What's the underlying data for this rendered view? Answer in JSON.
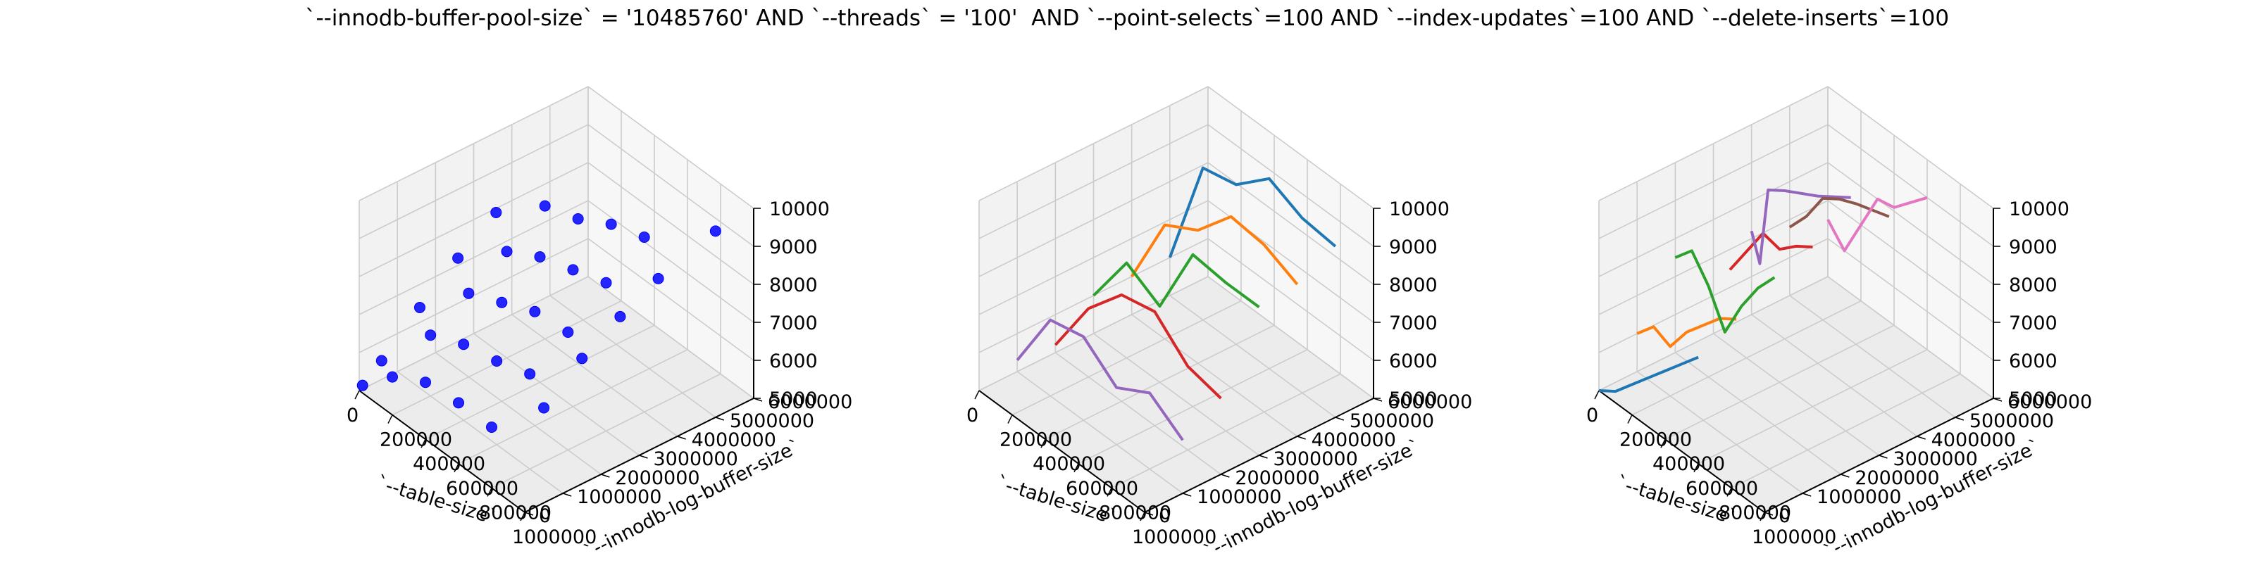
{
  "figure": {
    "title": "`--innodb-buffer-pool-size` = '10485760' AND `--threads` = '100'  AND `--point-selects`=100 AND `--index-updates`=100 AND `--delete-inserts`=100"
  },
  "colors": {
    "scatter": "#0000ff",
    "series": [
      "#1f77b4",
      "#ff7f0e",
      "#2ca02c",
      "#d62728",
      "#9467bd",
      "#8c564b",
      "#e377c2"
    ],
    "pane": "#f2f2f2",
    "grid": "#cccccc"
  },
  "chart_data": [
    {
      "type": "scatter",
      "xlabel": "`--table-size`",
      "ylabel": "`--innodb-log-buffer-size`",
      "zlabel": "",
      "xlim": [
        0,
        1000000
      ],
      "ylim": [
        0,
        6000000
      ],
      "zlim": [
        5000,
        10000
      ],
      "xticks": [
        "0",
        "200000",
        "400000",
        "600000",
        "800000",
        "1000000"
      ],
      "yticks": [
        "0",
        "1000000",
        "2000000",
        "3000000",
        "4000000",
        "5000000",
        "6000000"
      ],
      "zticks": [
        "5000",
        "6000",
        "7000",
        "8000",
        "9000",
        "10000"
      ],
      "grid": true,
      "points": [
        {
          "x": 20000,
          "y": 0,
          "z": 5200
        },
        {
          "x": 20000,
          "y": 500000,
          "z": 5600
        },
        {
          "x": 20000,
          "y": 1500000,
          "z": 6500
        },
        {
          "x": 20000,
          "y": 2500000,
          "z": 7300
        },
        {
          "x": 20000,
          "y": 3500000,
          "z": 8000
        },
        {
          "x": 200000,
          "y": 0,
          "z": 6000
        },
        {
          "x": 200000,
          "y": 1000000,
          "z": 6600
        },
        {
          "x": 200000,
          "y": 2000000,
          "z": 7200
        },
        {
          "x": 200000,
          "y": 3000000,
          "z": 7800
        },
        {
          "x": 200000,
          "y": 4000000,
          "z": 8500
        },
        {
          "x": 400000,
          "y": 0,
          "z": 6500
        },
        {
          "x": 400000,
          "y": 1000000,
          "z": 7000
        },
        {
          "x": 400000,
          "y": 2000000,
          "z": 7600
        },
        {
          "x": 400000,
          "y": 3000000,
          "z": 8300
        },
        {
          "x": 400000,
          "y": 4000000,
          "z": 8800
        },
        {
          "x": 600000,
          "y": 0,
          "z": 6600
        },
        {
          "x": 600000,
          "y": 1000000,
          "z": 7200
        },
        {
          "x": 600000,
          "y": 2000000,
          "z": 8000
        },
        {
          "x": 600000,
          "y": 3000000,
          "z": 8600
        },
        {
          "x": 600000,
          "y": 4000000,
          "z": 9300
        },
        {
          "x": 800000,
          "y": 0,
          "z": 6600
        },
        {
          "x": 800000,
          "y": 1000000,
          "z": 7500
        },
        {
          "x": 800000,
          "y": 2000000,
          "z": 8100
        },
        {
          "x": 800000,
          "y": 3000000,
          "z": 8900
        },
        {
          "x": 800000,
          "y": 4000000,
          "z": 9600
        },
        {
          "x": 1000000,
          "y": 500000,
          "z": 7500
        },
        {
          "x": 1000000,
          "y": 1500000,
          "z": 8300
        },
        {
          "x": 1000000,
          "y": 2500000,
          "z": 8900
        },
        {
          "x": 1000000,
          "y": 3500000,
          "z": 9400
        },
        {
          "x": 1000000,
          "y": 5000000,
          "z": 9900
        }
      ]
    },
    {
      "type": "line",
      "xlabel": "`--table-size`",
      "ylabel": "`--innodb-log-buffer-size`",
      "zlabel": "",
      "xlim": [
        0,
        1000000
      ],
      "ylim": [
        0,
        6000000
      ],
      "zlim": [
        5000,
        10000
      ],
      "xticks": [
        "0",
        "200000",
        "400000",
        "600000",
        "800000",
        "1000000"
      ],
      "yticks": [
        "0",
        "1000000",
        "2000000",
        "3000000",
        "4000000",
        "5000000",
        "6000000"
      ],
      "zticks": [
        "5000",
        "6000",
        "7000",
        "8000",
        "9000",
        "10000"
      ],
      "grid": true,
      "series": [
        {
          "x": [
            0,
            200000,
            400000,
            600000,
            800000,
            1000000
          ],
          "y": [
            5000000,
            5000000,
            5000000,
            5000000,
            5000000,
            5000000
          ],
          "z": [
            6000,
            9000,
            9200,
            10000,
            9600,
            9500
          ]
        },
        {
          "x": [
            0,
            200000,
            400000,
            600000,
            800000,
            1000000
          ],
          "y": [
            4000000,
            4000000,
            4000000,
            4000000,
            4000000,
            4000000
          ],
          "z": [
            6000,
            8000,
            8500,
            9500,
            9400,
            9000
          ]
        },
        {
          "x": [
            0,
            200000,
            400000,
            600000,
            800000,
            1000000
          ],
          "y": [
            3000000,
            3000000,
            3000000,
            3000000,
            3000000,
            3000000
          ],
          "z": [
            6000,
            7500,
            7000,
            9000,
            8900,
            8900
          ]
        },
        {
          "x": [
            0,
            200000,
            400000,
            600000,
            800000,
            1000000
          ],
          "y": [
            2000000,
            2000000,
            2000000,
            2000000,
            2000000,
            2000000
          ],
          "z": [
            5200,
            6800,
            7800,
            8000,
            7200,
            7000
          ]
        },
        {
          "x": [
            0,
            200000,
            400000,
            600000,
            800000,
            1000000
          ],
          "y": [
            1000000,
            1000000,
            1000000,
            1000000,
            1000000,
            1000000
          ],
          "z": [
            5300,
            7000,
            7200,
            6500,
            7000,
            6400
          ]
        }
      ]
    },
    {
      "type": "line",
      "xlabel": "`--table-size`",
      "ylabel": "`--innodb-log-buffer-size`",
      "zlabel": "",
      "xlim": [
        0,
        1000000
      ],
      "ylim": [
        0,
        6000000
      ],
      "zlim": [
        5000,
        10000
      ],
      "xticks": [
        "0",
        "200000",
        "400000",
        "600000",
        "800000",
        "1000000"
      ],
      "yticks": [
        "0",
        "1000000",
        "2000000",
        "3000000",
        "4000000",
        "5000000",
        "6000000"
      ],
      "zticks": [
        "5000",
        "6000",
        "7000",
        "8000",
        "9000",
        "10000"
      ],
      "grid": true,
      "series": [
        {
          "x": [
            0,
            100000,
            200000,
            300000,
            400000,
            500000,
            600000
          ],
          "y": [
            0,
            0,
            0,
            0,
            0,
            0,
            0
          ],
          "z": [
            5000,
            5300,
            5800,
            6300,
            6800,
            7300,
            7800
          ]
        },
        {
          "x": [
            0,
            100000,
            200000,
            300000,
            400000,
            500000,
            600000
          ],
          "y": [
            1000000,
            1000000,
            1000000,
            1000000,
            1000000,
            1000000,
            1000000
          ],
          "z": [
            6000,
            6500,
            6300,
            7000,
            7500,
            8000,
            8300
          ]
        },
        {
          "x": [
            0,
            100000,
            200000,
            300000,
            400000,
            500000,
            600000
          ],
          "y": [
            2000000,
            2000000,
            2000000,
            2000000,
            2000000,
            2000000,
            2000000
          ],
          "z": [
            7500,
            8000,
            7400,
            6500,
            7500,
            8300,
            8900
          ]
        },
        {
          "x": [
            100000,
            200000,
            300000,
            400000,
            500000,
            600000
          ],
          "y": [
            3000000,
            3000000,
            3000000,
            3000000,
            3000000,
            3000000
          ],
          "z": [
            7000,
            7800,
            8600,
            8500,
            8900,
            9200
          ]
        },
        {
          "x": [
            0,
            50000,
            100000,
            200000,
            400000,
            600000
          ],
          "y": [
            4000000,
            4000000,
            4000000,
            4000000,
            4000000,
            4000000
          ],
          "z": [
            7200,
            6500,
            8600,
            8900,
            9400,
            10000
          ]
        },
        {
          "x": [
            0,
            100000,
            200000,
            300000,
            400000,
            600000
          ],
          "y": [
            5000000,
            5000000,
            5000000,
            5000000,
            5000000,
            5000000
          ],
          "z": [
            6800,
            7400,
            8200,
            8500,
            8700,
            9000
          ]
        },
        {
          "x": [
            0,
            100000,
            200000,
            300000,
            400000,
            600000
          ],
          "y": [
            6000000,
            6000000,
            6000000,
            6000000,
            6000000,
            6000000
          ],
          "z": [
            6500,
            6000,
            7000,
            8000,
            8100,
            9000
          ]
        }
      ]
    }
  ]
}
